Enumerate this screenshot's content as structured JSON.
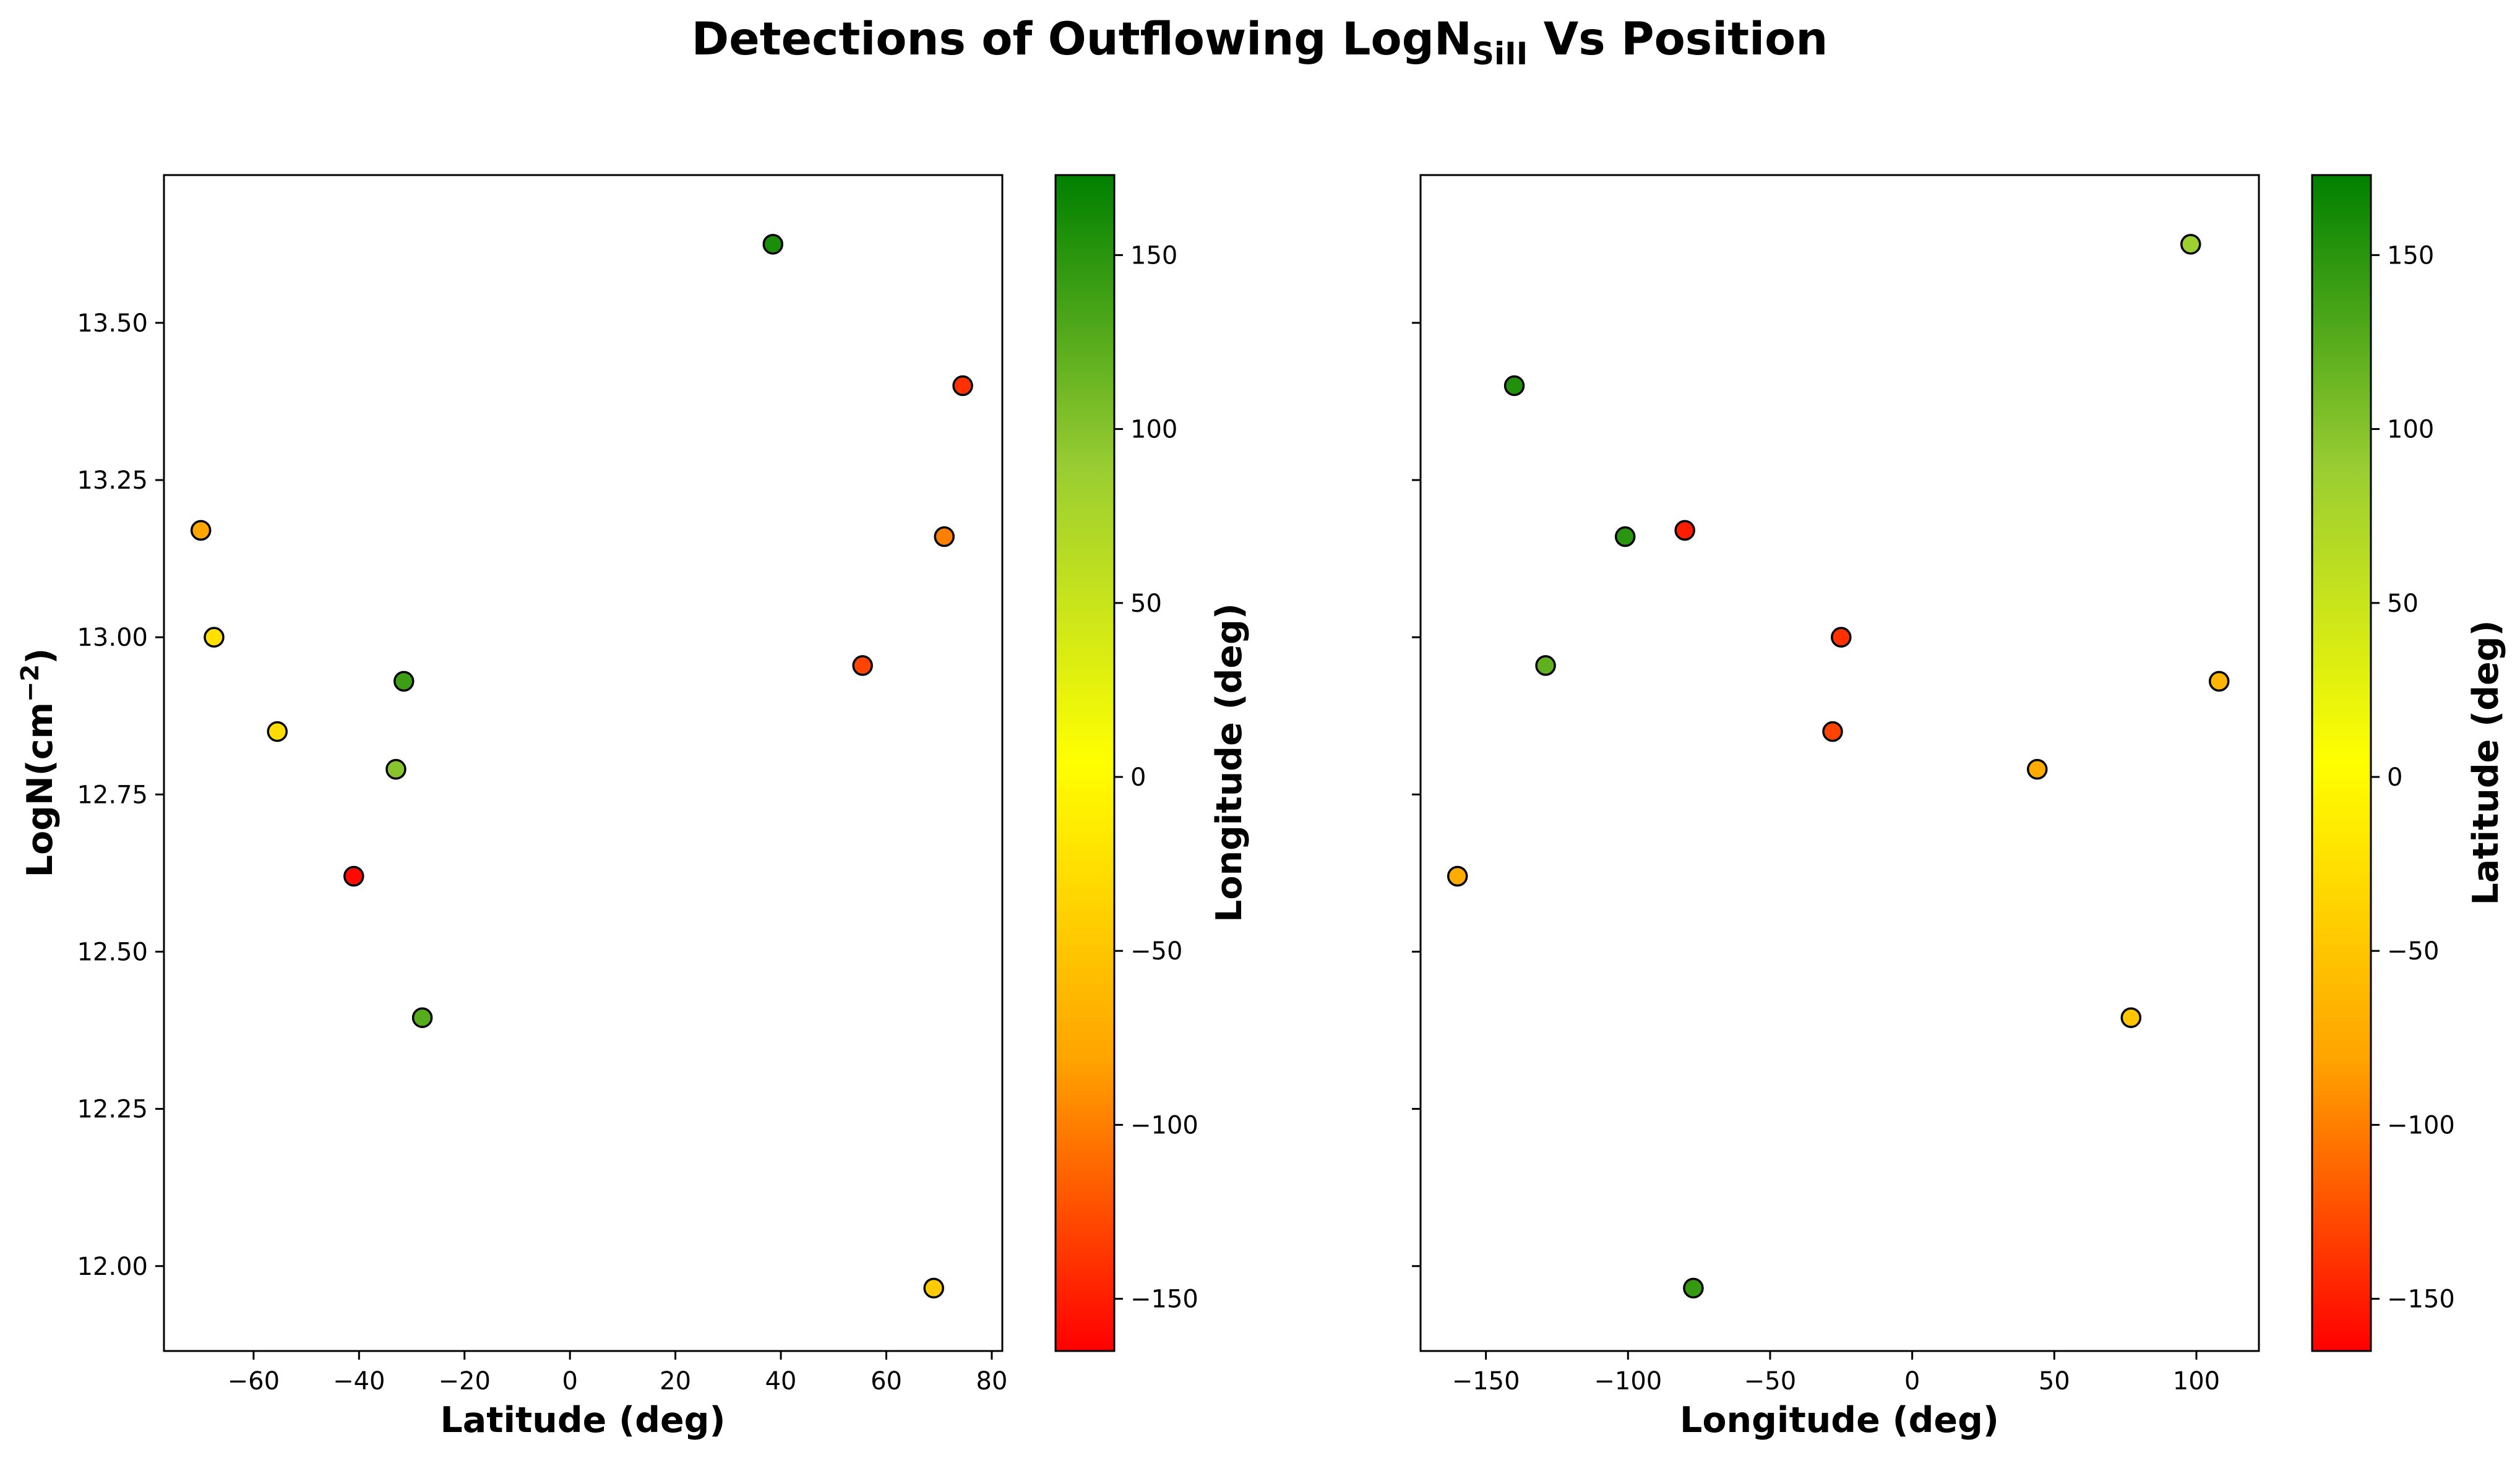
{
  "title": {
    "prefix": "Detections of Outflowing LogN",
    "subscript": "SiII",
    "suffix": " Vs Position"
  },
  "chart_data": [
    {
      "type": "scatter",
      "xlabel": "Latitude (deg)",
      "ylabel_base": "LogN(cm",
      "ylabel_sup": "−2",
      "ylabel_close": ")",
      "xlim": [
        -77,
        82
      ],
      "ylim": [
        11.865,
        13.735
      ],
      "xticks": [
        -60,
        -40,
        -20,
        0,
        20,
        40,
        60,
        80
      ],
      "yticks": [
        12.0,
        12.25,
        12.5,
        12.75,
        13.0,
        13.25,
        13.5
      ],
      "grid": false,
      "colorbar": {
        "label": "Longitude (deg)",
        "range": [
          -165,
          173
        ],
        "ticks": [
          -150,
          -100,
          -50,
          0,
          50,
          100,
          150
        ],
        "colormap": [
          "#ff0000",
          "#ffa500",
          "#ffff00",
          "#9acd32",
          "#008000"
        ]
      },
      "points": [
        {
          "x": -70,
          "y": 13.17,
          "c": -80
        },
        {
          "x": -67.5,
          "y": 13.0,
          "c": -25
        },
        {
          "x": -55.5,
          "y": 12.85,
          "c": -28
        },
        {
          "x": -41,
          "y": 12.62,
          "c": -160
        },
        {
          "x": -33,
          "y": 12.79,
          "c": 98
        },
        {
          "x": -31.5,
          "y": 12.93,
          "c": 140
        },
        {
          "x": -28,
          "y": 12.395,
          "c": 125
        },
        {
          "x": 38.5,
          "y": 13.625,
          "c": 158
        },
        {
          "x": 55.5,
          "y": 12.955,
          "c": -130
        },
        {
          "x": 69,
          "y": 11.965,
          "c": -45
        },
        {
          "x": 71,
          "y": 13.16,
          "c": -100
        },
        {
          "x": 74.5,
          "y": 13.4,
          "c": -140
        }
      ]
    },
    {
      "type": "scatter",
      "xlabel": "Longitude (deg)",
      "xlim": [
        -173,
        122
      ],
      "ylim": [
        11.865,
        13.735
      ],
      "xticks": [
        -150,
        -100,
        -50,
        0,
        50,
        100
      ],
      "yticks": [
        12.0,
        12.25,
        12.5,
        12.75,
        13.0,
        13.25,
        13.5
      ],
      "grid": false,
      "colorbar": {
        "label": "Latitude (deg)",
        "range": [
          -165,
          173
        ],
        "ticks": [
          -150,
          -100,
          -50,
          0,
          50,
          100,
          150
        ],
        "colormap": [
          "#ff0000",
          "#ffa500",
          "#ffff00",
          "#9acd32",
          "#008000"
        ]
      },
      "points": [
        {
          "x": -160,
          "y": 12.62,
          "c": -75
        },
        {
          "x": -140,
          "y": 13.4,
          "c": 155
        },
        {
          "x": -129,
          "y": 12.955,
          "c": 120
        },
        {
          "x": -101,
          "y": 13.16,
          "c": 150
        },
        {
          "x": -80,
          "y": 13.17,
          "c": -150
        },
        {
          "x": -77,
          "y": 11.965,
          "c": 145
        },
        {
          "x": -28,
          "y": 12.85,
          "c": -130
        },
        {
          "x": -25,
          "y": 13.0,
          "c": -140
        },
        {
          "x": 44,
          "y": 12.79,
          "c": -75
        },
        {
          "x": 77,
          "y": 12.395,
          "c": -50
        },
        {
          "x": 98,
          "y": 13.625,
          "c": 85
        },
        {
          "x": 108,
          "y": 12.93,
          "c": -65
        }
      ]
    }
  ]
}
